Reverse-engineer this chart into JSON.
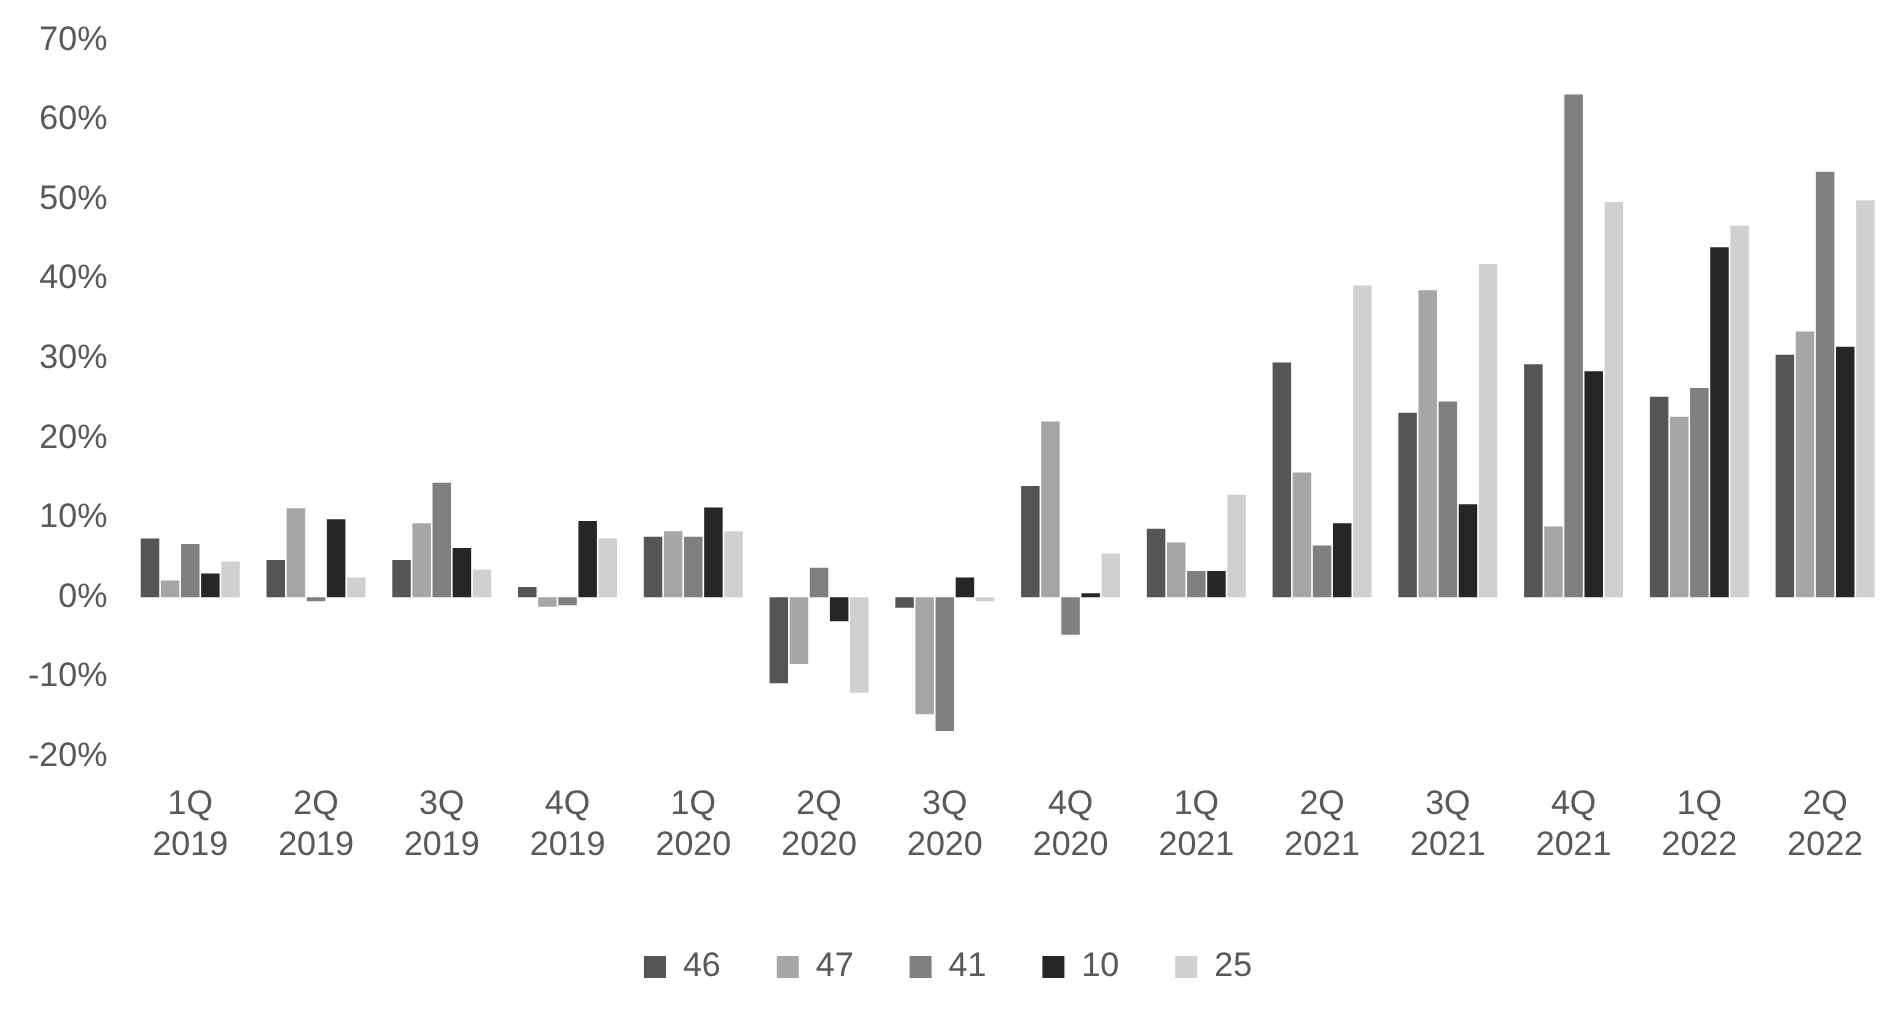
{
  "chart_data": {
    "type": "bar",
    "categories": [
      "1Q 2019",
      "2Q 2019",
      "3Q 2019",
      "4Q 2019",
      "1Q 2020",
      "2Q 2020",
      "3Q 2020",
      "4Q 2020",
      "1Q 2021",
      "2Q 2021",
      "3Q 2021",
      "4Q 2021",
      "1Q 2022",
      "2Q 2022"
    ],
    "series": [
      {
        "name": "46",
        "color": "#555555",
        "values": [
          7.4,
          4.7,
          4.7,
          1.3,
          7.6,
          -10.8,
          -1.3,
          14.0,
          8.6,
          29.5,
          23.2,
          29.3,
          25.2,
          30.5
        ]
      },
      {
        "name": "47",
        "color": "#a6a6a6",
        "values": [
          2.1,
          11.2,
          9.3,
          -1.2,
          8.3,
          -8.4,
          -14.7,
          22.1,
          6.9,
          15.7,
          38.6,
          8.9,
          22.7,
          33.4
        ]
      },
      {
        "name": "41",
        "color": "#7f7f7f",
        "values": [
          6.7,
          -0.5,
          14.4,
          -1.0,
          7.6,
          3.7,
          -16.8,
          -4.7,
          3.3,
          6.5,
          24.6,
          63.2,
          26.3,
          53.5
        ]
      },
      {
        "name": "10",
        "color": "#262626",
        "values": [
          3.0,
          9.8,
          6.2,
          9.6,
          11.3,
          -3.0,
          2.5,
          0.5,
          3.3,
          9.3,
          11.7,
          28.4,
          44.0,
          31.5
        ]
      },
      {
        "name": "25",
        "color": "#d0d0d0",
        "values": [
          4.5,
          2.5,
          3.5,
          7.4,
          8.3,
          -12.0,
          -0.5,
          5.5,
          12.9,
          39.2,
          41.9,
          49.7,
          46.7,
          49.9
        ]
      }
    ],
    "ylim": [
      -20,
      70
    ],
    "yticks": [
      {
        "value": -20,
        "label": "-20%"
      },
      {
        "value": -10,
        "label": "-10%"
      },
      {
        "value": 0,
        "label": "0%"
      },
      {
        "value": 10,
        "label": "10%"
      },
      {
        "value": 20,
        "label": "20%"
      },
      {
        "value": 30,
        "label": "30%"
      },
      {
        "value": 40,
        "label": "40%"
      },
      {
        "value": 50,
        "label": "50%"
      },
      {
        "value": 60,
        "label": "60%"
      },
      {
        "value": 70,
        "label": "70%"
      }
    ],
    "grid": false,
    "legend": "bottom"
  }
}
